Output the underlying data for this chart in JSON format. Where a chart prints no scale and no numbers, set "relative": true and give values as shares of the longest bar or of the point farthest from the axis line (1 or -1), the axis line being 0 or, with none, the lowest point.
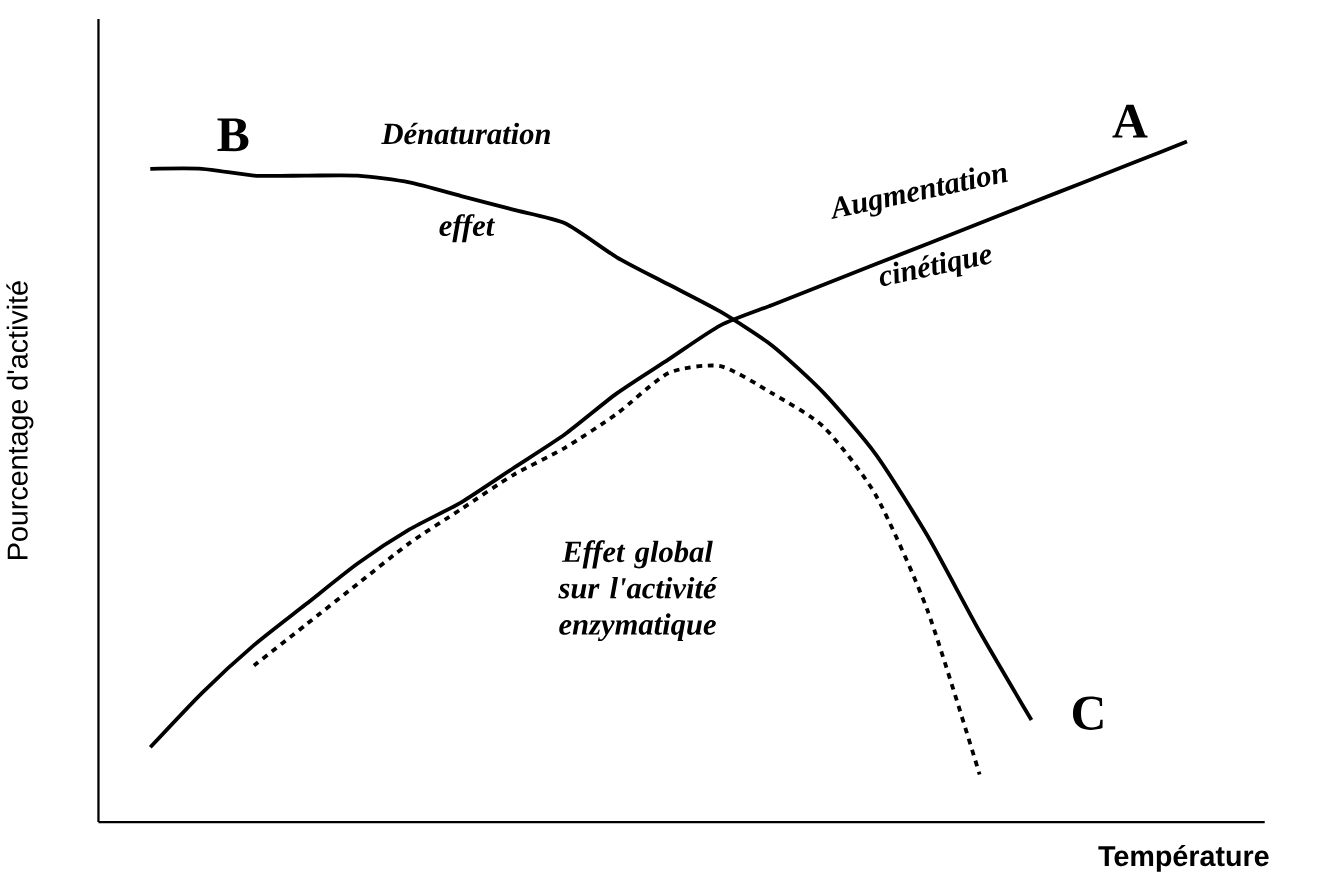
{
  "chart_data": {
    "type": "line",
    "relative": true,
    "xlabel": "Température",
    "ylabel": "Pourcentage d'activité",
    "categories": [
      null,
      null,
      null,
      null,
      null,
      null,
      null,
      null,
      null,
      null,
      null,
      null,
      null,
      null,
      null,
      null,
      null,
      null,
      null,
      null,
      null
    ],
    "series": [
      {
        "color": "#000000",
        "line_style": "solid",
        "values": [
          0.11,
          0.19,
          0.26,
          0.32,
          0.38,
          0.43,
          0.47,
          0.52,
          0.57,
          0.63,
          0.68,
          0.73,
          0.76,
          0.79,
          0.82,
          0.85,
          0.88,
          0.91,
          0.94,
          0.97,
          1.0
        ]
      },
      {
        "color": "#000000",
        "line_style": "solid",
        "values": [
          0.96,
          0.96,
          0.95,
          0.95,
          0.95,
          0.94,
          0.92,
          0.9,
          0.88,
          0.83,
          0.79,
          0.75,
          0.7,
          0.63,
          0.54,
          0.42,
          0.28,
          0.15,
          null,
          null,
          null
        ]
      },
      {
        "color": "#000000",
        "line_style": "dashed",
        "values": [
          null,
          null,
          0.23,
          0.29,
          0.35,
          0.41,
          0.46,
          0.51,
          0.55,
          0.6,
          0.66,
          0.67,
          0.63,
          0.58,
          0.48,
          0.31,
          0.07,
          null,
          null,
          null,
          null
        ]
      }
    ],
    "annotations": [
      "A",
      "B",
      "Dénaturation effet",
      "Augmentation cinétique",
      "Effet global sur l'activité enzymatique",
      "C"
    ],
    "marker": "none"
  }
}
